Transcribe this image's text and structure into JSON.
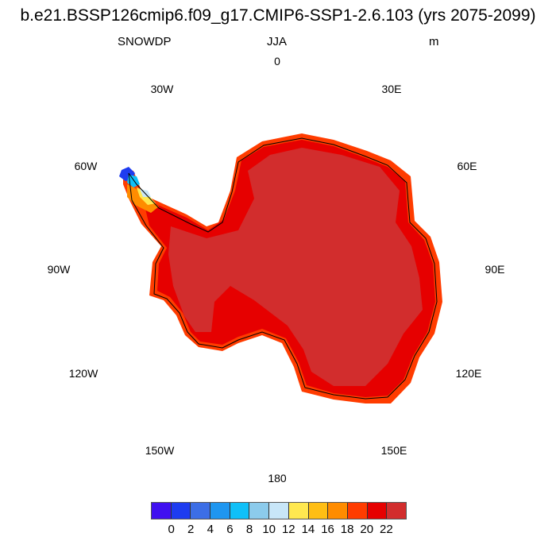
{
  "title": "b.e21.BSSP126cmip6.f09_g17.CMIP6-SSP1-2.6.103 (yrs 2075-2099)",
  "left_label": "SNOWDP",
  "center_label": "JJA",
  "right_label": "m",
  "longitude_labels": [
    "0",
    "30E",
    "60E",
    "90E",
    "120E",
    "150E",
    "180",
    "150W",
    "120W",
    "90W",
    "60W",
    "30W"
  ],
  "colorbar": {
    "colors": [
      "#4010f0",
      "#1e3cf0",
      "#3c6ee6",
      "#1e96f0",
      "#10c0f8",
      "#8ccbec",
      "#c8e6f8",
      "#ffe850",
      "#ffbe14",
      "#ff8c00",
      "#ff3c00",
      "#e60000",
      "#d22d2d"
    ],
    "labels": [
      "0",
      "2",
      "4",
      "6",
      "8",
      "10",
      "12",
      "14",
      "16",
      "18",
      "20",
      "22"
    ]
  }
}
